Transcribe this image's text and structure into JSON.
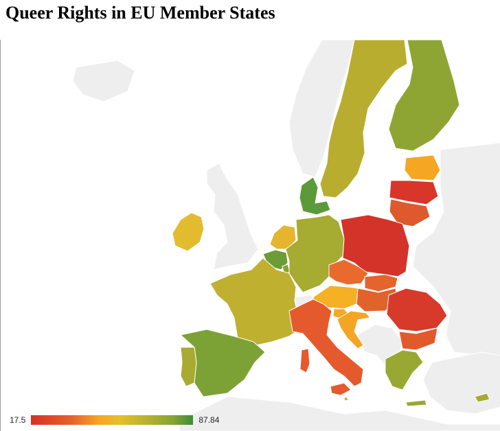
{
  "title": "Queer Rights in EU Member States",
  "legend": {
    "min": "17.5",
    "max": "87.84",
    "colors": [
      "#d73027",
      "#f5a623",
      "#e3c02a",
      "#3d8c3a"
    ]
  },
  "colors": {
    "background_land": "#eeeeee",
    "border": "#ffffff",
    "sea": "#ffffff"
  },
  "regions": [
    {
      "name": "Sweden",
      "color": "#b9ad2f"
    },
    {
      "name": "Finland",
      "color": "#8ea534"
    },
    {
      "name": "Estonia",
      "color": "#f5a623"
    },
    {
      "name": "Latvia",
      "color": "#d9362b"
    },
    {
      "name": "Lithuania",
      "color": "#de5a2c"
    },
    {
      "name": "Denmark",
      "color": "#5a9a38"
    },
    {
      "name": "Ireland",
      "color": "#e3bb2e"
    },
    {
      "name": "Netherlands",
      "color": "#e4b52d"
    },
    {
      "name": "Belgium",
      "color": "#6b9c36"
    },
    {
      "name": "Luxembourg",
      "color": "#8aa334"
    },
    {
      "name": "Germany",
      "color": "#a6ab31"
    },
    {
      "name": "Poland",
      "color": "#d43329"
    },
    {
      "name": "Czechia",
      "color": "#e86a2c"
    },
    {
      "name": "Slovakia",
      "color": "#e4652c"
    },
    {
      "name": "Hungary",
      "color": "#e2622c"
    },
    {
      "name": "Austria",
      "color": "#f5b024"
    },
    {
      "name": "Slovenia",
      "color": "#f3a925"
    },
    {
      "name": "Croatia",
      "color": "#f4a525"
    },
    {
      "name": "France",
      "color": "#bfb02f"
    },
    {
      "name": "Spain",
      "color": "#7ca235"
    },
    {
      "name": "Portugal",
      "color": "#a9aa31"
    },
    {
      "name": "Italy",
      "color": "#e45a2c"
    },
    {
      "name": "Romania",
      "color": "#d73a2a"
    },
    {
      "name": "Bulgaria",
      "color": "#e25a2c"
    },
    {
      "name": "Greece",
      "color": "#99a833"
    },
    {
      "name": "Malta",
      "color": "#c1b02f"
    },
    {
      "name": "Cyprus",
      "color": "#a6ab31"
    }
  ]
}
